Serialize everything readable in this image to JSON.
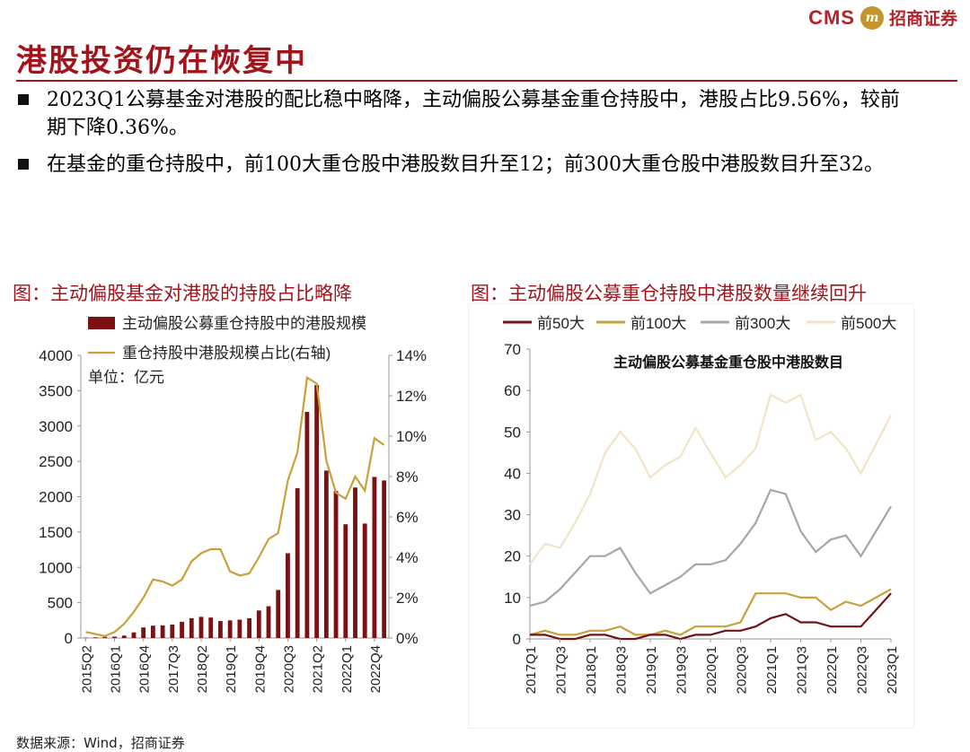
{
  "header": {
    "brand_latin": "CMS",
    "brand_chinese": "招商证券",
    "title": "港股投资仍在恢复中"
  },
  "bullets": [
    "2023Q1公募基金对港股的配比稳中略降，主动偏股公募基金重仓持股中，港股占比9.56%，较前期下降0.36%。",
    "在基金的重仓持股中，前100大重仓股中港股数目升至12；前300大重仓股中港股数目升至32。"
  ],
  "left_panel": {
    "title": "图：主动偏股基金对港股的持股占比略降"
  },
  "right_panel": {
    "title": "图：主动偏股公募重仓持股中港股数量继续回升"
  },
  "source": "数据来源：Wind，招商证券",
  "chart_data": [
    {
      "type": "bar",
      "categories": [
        "2015Q2",
        "2015Q3",
        "2015Q4",
        "2016Q1",
        "2016Q2",
        "2016Q3",
        "2016Q4",
        "2017Q1",
        "2017Q2",
        "2017Q3",
        "2017Q4",
        "2018Q1",
        "2018Q2",
        "2018Q3",
        "2018Q4",
        "2019Q1",
        "2019Q2",
        "2019Q3",
        "2019Q4",
        "2020Q1",
        "2020Q2",
        "2020Q3",
        "2020Q4",
        "2021Q1",
        "2021Q2",
        "2021Q3",
        "2021Q4",
        "2022Q1",
        "2022Q2",
        "2022Q3",
        "2022Q4",
        "2023Q1"
      ],
      "x_tick_labels": [
        "2015Q2",
        "2016Q1",
        "2016Q4",
        "2017Q3",
        "2018Q2",
        "2019Q1",
        "2019Q4",
        "2020Q3",
        "2021Q2",
        "2022Q1",
        "2022Q4"
      ],
      "series": [
        {
          "name": "主动偏股公募重仓持股中的港股规模",
          "type": "bar",
          "axis": "left",
          "color": "#7b1113",
          "values": [
            5,
            10,
            15,
            20,
            35,
            80,
            150,
            175,
            180,
            190,
            230,
            280,
            300,
            290,
            240,
            250,
            260,
            280,
            390,
            450,
            680,
            1200,
            2120,
            3200,
            3580,
            2370,
            2080,
            1610,
            2130,
            1620,
            2280,
            2230
          ]
        },
        {
          "name": "重仓持股中港股规模占比(右轴)",
          "type": "line",
          "axis": "right",
          "color": "#c9a13a",
          "values": [
            0.3,
            0.2,
            0.1,
            0.3,
            0.7,
            1.3,
            2.0,
            2.9,
            2.8,
            2.6,
            2.9,
            3.8,
            4.2,
            4.4,
            4.4,
            3.3,
            3.1,
            3.2,
            4.0,
            4.9,
            5.2,
            7.8,
            9.2,
            12.9,
            12.6,
            8.8,
            7.2,
            6.9,
            8.0,
            7.3,
            9.9,
            9.56
          ]
        }
      ],
      "left_axis": {
        "ylim": [
          0,
          4000
        ],
        "ticks": [
          "0",
          "500",
          "1000",
          "1500",
          "2000",
          "2500",
          "3000",
          "3500",
          "4000"
        ]
      },
      "right_axis": {
        "ylim": [
          0,
          14
        ],
        "ticks": [
          "0%",
          "2%",
          "4%",
          "6%",
          "8%",
          "10%",
          "12%",
          "14%"
        ]
      },
      "annotation": "单位：亿元",
      "legend_position": "top"
    },
    {
      "type": "line",
      "title": "主动偏股公募基金重仓股中港股数目",
      "categories": [
        "2017Q1",
        "2017Q2",
        "2017Q3",
        "2017Q4",
        "2018Q1",
        "2018Q2",
        "2018Q3",
        "2018Q4",
        "2019Q1",
        "2019Q2",
        "2019Q3",
        "2019Q4",
        "2020Q1",
        "2020Q2",
        "2020Q3",
        "2020Q4",
        "2021Q1",
        "2021Q2",
        "2021Q3",
        "2021Q4",
        "2022Q1",
        "2022Q2",
        "2022Q3",
        "2022Q4",
        "2023Q1"
      ],
      "x_tick_labels": [
        "2017Q1",
        "2017Q3",
        "2018Q1",
        "2018Q3",
        "2019Q1",
        "2019Q3",
        "2020Q1",
        "2020Q3",
        "2021Q1",
        "2021Q3",
        "2022Q1",
        "2022Q3",
        "2023Q1"
      ],
      "series": [
        {
          "name": "前50大",
          "color": "#6e1416",
          "values": [
            1,
            1,
            0,
            0,
            1,
            1,
            0,
            0,
            1,
            1,
            0,
            1,
            1,
            2,
            2,
            3,
            5,
            6,
            4,
            4,
            3,
            3,
            3,
            7,
            11
          ]
        },
        {
          "name": "前100大",
          "color": "#c9a13a",
          "values": [
            1,
            2,
            1,
            1,
            2,
            2,
            3,
            1,
            1,
            2,
            1,
            3,
            3,
            3,
            4,
            11,
            11,
            11,
            10,
            10,
            7,
            9,
            8,
            10,
            12
          ]
        },
        {
          "name": "前300大",
          "color": "#a6a6a6",
          "values": [
            8,
            9,
            12,
            16,
            20,
            20,
            22,
            16,
            11,
            13,
            15,
            18,
            18,
            19,
            23,
            28,
            36,
            35,
            26,
            21,
            24,
            25,
            20,
            26,
            32
          ]
        },
        {
          "name": "前500大",
          "color": "#f2e4c6",
          "values": [
            18,
            23,
            22,
            28,
            35,
            45,
            50,
            46,
            39,
            42,
            44,
            51,
            45,
            39,
            42,
            46,
            59,
            57,
            59,
            48,
            50,
            46,
            40,
            47,
            54
          ]
        }
      ],
      "ylim": [
        0,
        70
      ],
      "y_ticks": [
        "0",
        "10",
        "20",
        "30",
        "40",
        "50",
        "60",
        "70"
      ],
      "legend_position": "top"
    }
  ]
}
